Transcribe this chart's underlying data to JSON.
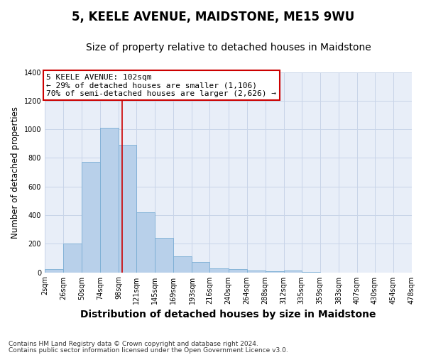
{
  "title": "5, KEELE AVENUE, MAIDSTONE, ME15 9WU",
  "subtitle": "Size of property relative to detached houses in Maidstone",
  "xlabel": "Distribution of detached houses by size in Maidstone",
  "ylabel": "Number of detached properties",
  "footnote1": "Contains HM Land Registry data © Crown copyright and database right 2024.",
  "footnote2": "Contains public sector information licensed under the Open Government Licence v3.0.",
  "bin_edges": [
    2,
    26,
    50,
    74,
    98,
    121,
    145,
    169,
    193,
    216,
    240,
    264,
    288,
    312,
    335,
    359,
    383,
    407,
    430,
    454,
    478
  ],
  "bar_heights": [
    25,
    200,
    770,
    1010,
    890,
    420,
    240,
    110,
    70,
    27,
    22,
    15,
    8,
    12,
    3,
    0,
    0,
    0,
    0,
    0
  ],
  "bar_color": "#b8d0ea",
  "bar_edgecolor": "#7aadd4",
  "vline_x": 102,
  "vline_color": "#cc0000",
  "ylim": [
    0,
    1400
  ],
  "yticks": [
    0,
    200,
    400,
    600,
    800,
    1000,
    1200,
    1400
  ],
  "xlim": [
    2,
    478
  ],
  "xtick_labels": [
    "2sqm",
    "26sqm",
    "50sqm",
    "74sqm",
    "98sqm",
    "121sqm",
    "145sqm",
    "169sqm",
    "193sqm",
    "216sqm",
    "240sqm",
    "264sqm",
    "288sqm",
    "312sqm",
    "335sqm",
    "359sqm",
    "383sqm",
    "407sqm",
    "430sqm",
    "454sqm",
    "478sqm"
  ],
  "xtick_positions": [
    2,
    26,
    50,
    74,
    98,
    121,
    145,
    169,
    193,
    216,
    240,
    264,
    288,
    312,
    335,
    359,
    383,
    407,
    430,
    454,
    478
  ],
  "annotation_title": "5 KEELE AVENUE: 102sqm",
  "annotation_line1": "← 29% of detached houses are smaller (1,106)",
  "annotation_line2": "70% of semi-detached houses are larger (2,626) →",
  "annotation_box_color": "#ffffff",
  "annotation_box_edgecolor": "#cc0000",
  "grid_color": "#c8d4e8",
  "bg_color": "#e8eef8",
  "title_fontsize": 12,
  "subtitle_fontsize": 10,
  "ylabel_fontsize": 8.5,
  "xlabel_fontsize": 10,
  "tick_fontsize": 7,
  "annotation_fontsize": 8,
  "footnote_fontsize": 6.5
}
